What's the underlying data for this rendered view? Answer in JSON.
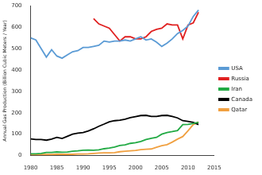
{
  "chart_data": {
    "type": "line",
    "y_label": "Annual Gas Production (Billion Cubic Meters / Year)",
    "x": [
      1980,
      1981,
      1982,
      1983,
      1984,
      1985,
      1986,
      1987,
      1988,
      1989,
      1990,
      1991,
      1992,
      1993,
      1994,
      1995,
      1996,
      1997,
      1998,
      1999,
      2000,
      2001,
      2002,
      2003,
      2004,
      2005,
      2006,
      2007,
      2008,
      2009,
      2010,
      2011,
      2012
    ],
    "series": [
      {
        "name": "USA",
        "color": "#5b9bd5",
        "values": [
          550,
          540,
          500,
          460,
          495,
          465,
          455,
          470,
          485,
          490,
          505,
          505,
          510,
          515,
          535,
          530,
          535,
          535,
          540,
          535,
          545,
          555,
          540,
          545,
          530,
          510,
          525,
          545,
          570,
          585,
          605,
          650,
          680
        ]
      },
      {
        "name": "Russia",
        "color": "#e02020",
        "values": [
          null,
          null,
          null,
          null,
          null,
          null,
          null,
          null,
          null,
          null,
          null,
          null,
          640,
          615,
          605,
          595,
          565,
          535,
          555,
          555,
          545,
          545,
          555,
          580,
          590,
          595,
          615,
          610,
          610,
          545,
          610,
          620,
          670
        ]
      },
      {
        "name": "Iran",
        "color": "#22aa44",
        "values": [
          8,
          8,
          10,
          15,
          15,
          17,
          16,
          17,
          20,
          22,
          25,
          26,
          25,
          27,
          32,
          35,
          40,
          47,
          50,
          57,
          60,
          66,
          75,
          81,
          85,
          100,
          108,
          112,
          117,
          145,
          146,
          150,
          155
        ]
      },
      {
        "name": "Canada",
        "color": "#000000",
        "values": [
          78,
          75,
          75,
          72,
          77,
          85,
          80,
          90,
          100,
          105,
          108,
          115,
          125,
          137,
          147,
          158,
          163,
          165,
          170,
          177,
          182,
          187,
          188,
          183,
          183,
          187,
          188,
          183,
          176,
          163,
          160,
          155,
          145
        ]
      },
      {
        "name": "Qatar",
        "color": "#f0a040",
        "values": [
          5,
          5,
          5,
          5,
          5,
          6,
          6,
          6,
          6,
          7,
          7,
          8,
          10,
          12,
          13,
          13,
          14,
          18,
          20,
          22,
          24,
          28,
          30,
          31,
          39,
          46,
          51,
          63,
          77,
          89,
          116,
          145,
          157
        ]
      }
    ],
    "xlim": [
      1980,
      2015
    ],
    "xticks": [
      1980,
      1985,
      1990,
      1995,
      2000,
      2005,
      2010,
      2015
    ],
    "ylim": [
      0,
      700
    ],
    "yticks": [
      0,
      100,
      200,
      300,
      400,
      500,
      600,
      700
    ],
    "grid": false,
    "legend": "right"
  }
}
